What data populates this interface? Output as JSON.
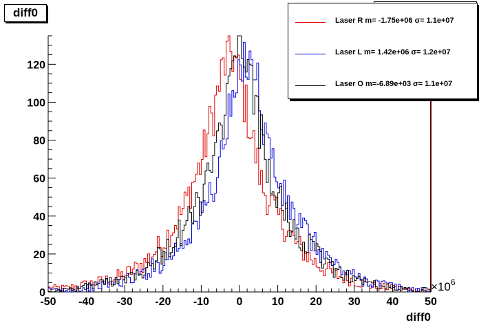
{
  "title": "diff0",
  "legend": [
    {
      "label": "Laser R m= -1.75e+06 σ= 1.1e+07",
      "color": "#e00000"
    },
    {
      "label": "Laser L m= 1.42e+06  σ= 1.2e+07",
      "color": "#0000e0"
    },
    {
      "label": "Laser O m=-6.89e+03  σ= 1.1e+07",
      "color": "#000000"
    }
  ],
  "chart_data": {
    "type": "line",
    "title": "diff0",
    "xlabel": "diff0",
    "ylabel": "",
    "x_multiplier_label": "×10",
    "x_multiplier_exp": "6",
    "xlim": [
      -50,
      50
    ],
    "ylim": [
      0,
      135
    ],
    "x_ticks": [
      -50,
      -40,
      -30,
      -20,
      -10,
      0,
      10,
      20,
      30,
      40,
      50
    ],
    "y_ticks": [
      0,
      20,
      40,
      60,
      80,
      100,
      120
    ],
    "grid": false,
    "legend_position": "top-right",
    "series": [
      {
        "name": "Laser R",
        "color": "#e00000",
        "x": [
          -45,
          -40,
          -35,
          -30,
          -25,
          -20,
          -15,
          -12,
          -10,
          -8,
          -6,
          -4,
          -2,
          0,
          2,
          4,
          6,
          8,
          10,
          15,
          20,
          25,
          30,
          35,
          40,
          45
        ],
        "y": [
          2,
          4,
          6,
          9,
          15,
          26,
          42,
          58,
          68,
          85,
          102,
          120,
          128,
          112,
          95,
          75,
          55,
          48,
          40,
          25,
          15,
          9,
          6,
          3,
          2,
          1
        ]
      },
      {
        "name": "Laser L",
        "color": "#0000e0",
        "x": [
          -45,
          -40,
          -35,
          -30,
          -25,
          -20,
          -15,
          -10,
          -6,
          -4,
          -2,
          0,
          2,
          4,
          6,
          8,
          10,
          12,
          15,
          20,
          25,
          30,
          35,
          40,
          45
        ],
        "y": [
          1,
          2,
          4,
          6,
          10,
          16,
          26,
          40,
          60,
          80,
          98,
          110,
          128,
          120,
          90,
          75,
          58,
          48,
          38,
          24,
          14,
          8,
          5,
          3,
          1
        ]
      },
      {
        "name": "Laser O",
        "color": "#000000",
        "x": [
          -45,
          -40,
          -35,
          -30,
          -25,
          -20,
          -15,
          -10,
          -6,
          -4,
          -2,
          0,
          2,
          4,
          6,
          8,
          10,
          12,
          15,
          20,
          25,
          30,
          35,
          40,
          45
        ],
        "y": [
          1,
          3,
          5,
          8,
          12,
          20,
          32,
          50,
          72,
          95,
          110,
          130,
          120,
          100,
          80,
          62,
          50,
          40,
          30,
          20,
          12,
          7,
          4,
          2,
          1
        ]
      }
    ]
  }
}
